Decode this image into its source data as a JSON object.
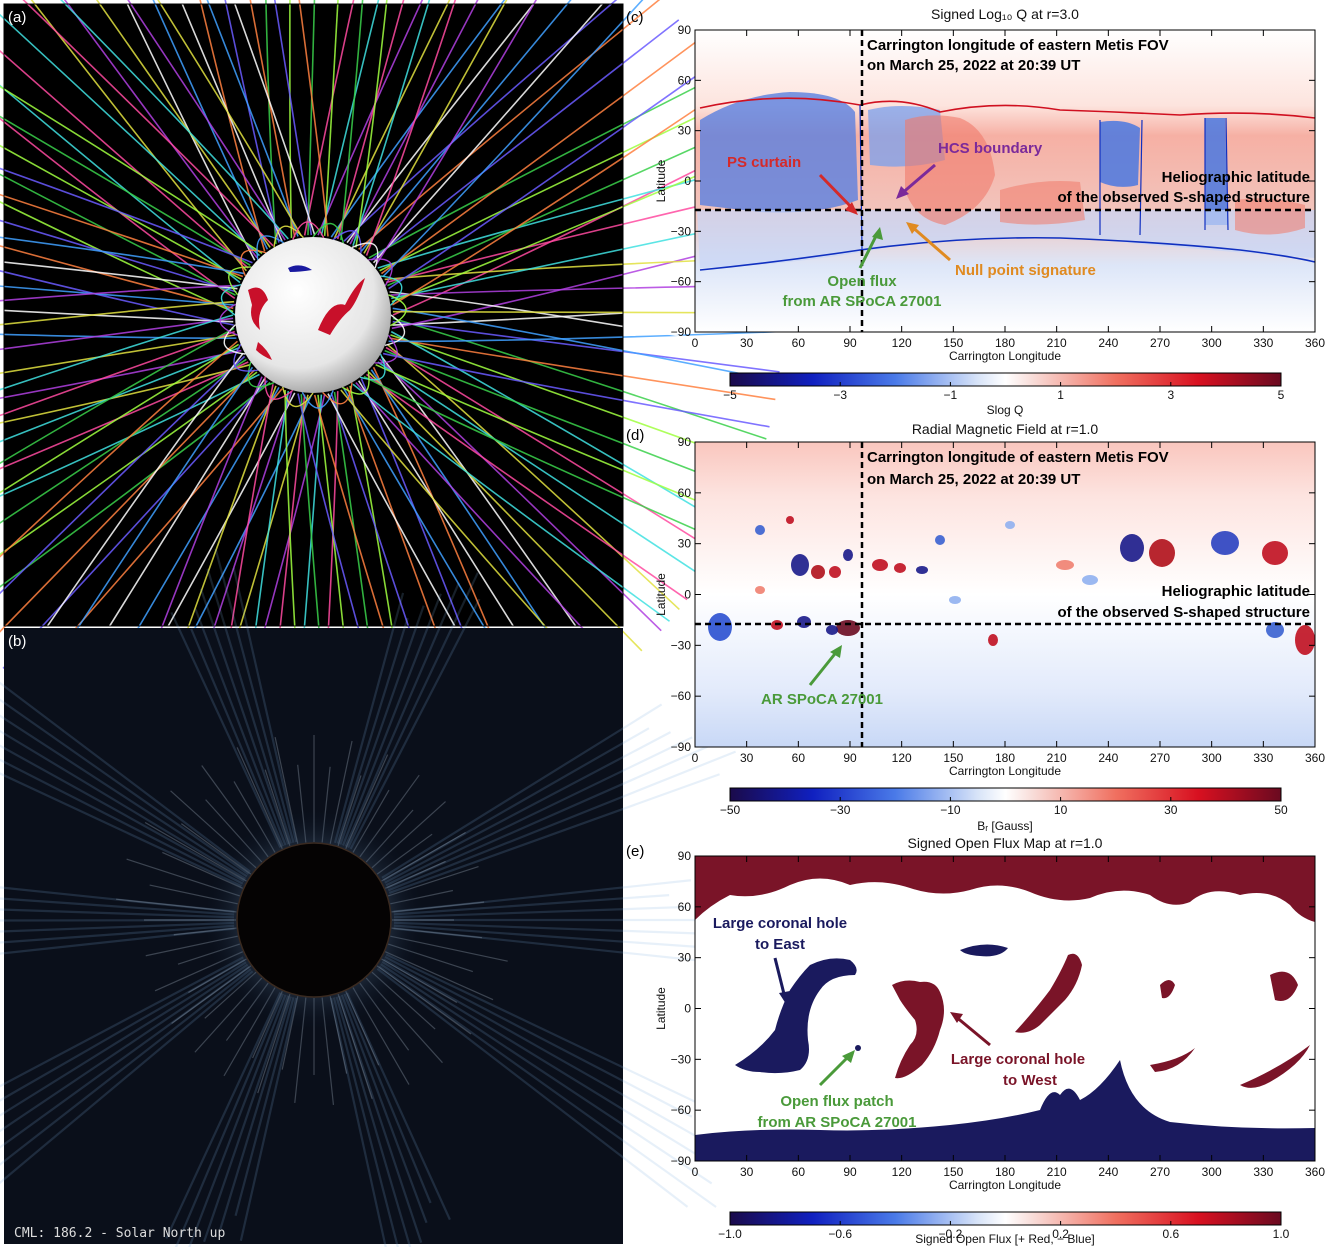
{
  "panels": {
    "a": {
      "label": "(a)"
    },
    "b": {
      "label": "(b)",
      "caption": "CML: 186.2 - Solar North up"
    },
    "c": {
      "label": "(c)",
      "title": "Signed Log₁₀ Q at r=3.0",
      "xlabel": "Carrington Longitude",
      "ylabel": "Latitude",
      "xticks": [
        "0",
        "30",
        "60",
        "90",
        "120",
        "150",
        "180",
        "210",
        "240",
        "270",
        "300",
        "330",
        "360"
      ],
      "yticks": [
        "90",
        "60",
        "30",
        "0",
        "−30",
        "−60",
        "−90"
      ],
      "colorbar": {
        "label": "Slog Q",
        "ticks": [
          "−5",
          "−3",
          "−1",
          "1",
          "3",
          "5"
        ]
      },
      "annotations": {
        "metis_line1": "Carrington longitude of eastern Metis FOV",
        "metis_line2": "on March 25, 2022 at 20:39 UT",
        "lat_line1": "Heliographic latitude",
        "lat_line2": "of the observed S-shaped structure",
        "ps_curtain": "PS curtain",
        "hcs": "HCS boundary",
        "null_point": "Null point signature",
        "open_flux1": "Open flux",
        "open_flux2": "from AR SPoCA 27001"
      }
    },
    "d": {
      "label": "(d)",
      "title": "Radial Magnetic Field at r=1.0",
      "xlabel": "Carrington Longitude",
      "ylabel": "Latitude",
      "xticks": [
        "0",
        "30",
        "60",
        "90",
        "120",
        "150",
        "180",
        "210",
        "240",
        "270",
        "300",
        "330",
        "360"
      ],
      "yticks": [
        "90",
        "60",
        "30",
        "0",
        "−30",
        "−60",
        "−90"
      ],
      "colorbar": {
        "label": "Bᵣ [Gauss]",
        "ticks": [
          "−50",
          "−30",
          "−10",
          "10",
          "30",
          "50"
        ]
      },
      "annotations": {
        "metis_line1": "Carrington longitude of eastern Metis FOV",
        "metis_line2": "on March 25, 2022 at 20:39 UT",
        "lat_line1": "Heliographic latitude",
        "lat_line2": "of the observed S-shaped structure",
        "ar": "AR SPoCA 27001"
      }
    },
    "e": {
      "label": "(e)",
      "title": "Signed Open Flux Map at r=1.0",
      "xlabel": "Carrington Longitude",
      "ylabel": "Latitude",
      "xticks": [
        "0",
        "30",
        "60",
        "90",
        "120",
        "150",
        "180",
        "210",
        "240",
        "270",
        "300",
        "330",
        "360"
      ],
      "yticks": [
        "90",
        "60",
        "30",
        "0",
        "−30",
        "−60",
        "−90"
      ],
      "colorbar": {
        "label": "Signed Open Flux [+ Red, − Blue]",
        "ticks": [
          "−1.0",
          "−0.6",
          "−0.2",
          "0.2",
          "0.6",
          "1.0"
        ]
      },
      "annotations": {
        "east1": "Large coronal hole",
        "east2": "to East",
        "west1": "Large coronal hole",
        "west2": "to West",
        "patch1": "Open flux patch",
        "patch2": "from AR SPoCA 27001"
      }
    }
  },
  "colors": {
    "red_ann": "#d42a2a",
    "purple_ann": "#7b2a9a",
    "orange_ann": "#e08a20",
    "green_ann": "#4a9a3a",
    "navy": "#1a1a5e",
    "maroon": "#7a1428"
  }
}
